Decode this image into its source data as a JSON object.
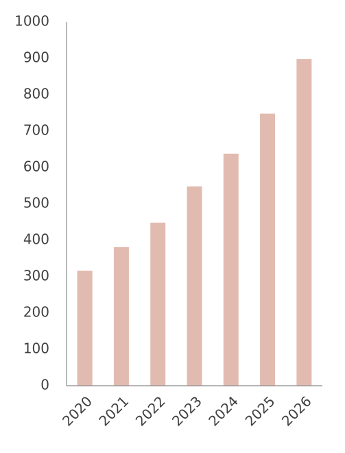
{
  "chart_data": {
    "type": "bar",
    "categories": [
      "2020",
      "2021",
      "2022",
      "2023",
      "2024",
      "2025",
      "2026"
    ],
    "values": [
      316,
      381,
      448,
      548,
      638,
      748,
      898
    ],
    "color": "#e2bbb0",
    "ylim": [
      0,
      1000
    ],
    "yticks": [
      0,
      100,
      200,
      300,
      400,
      500,
      600,
      700,
      800,
      900,
      1000
    ],
    "grid": false
  }
}
